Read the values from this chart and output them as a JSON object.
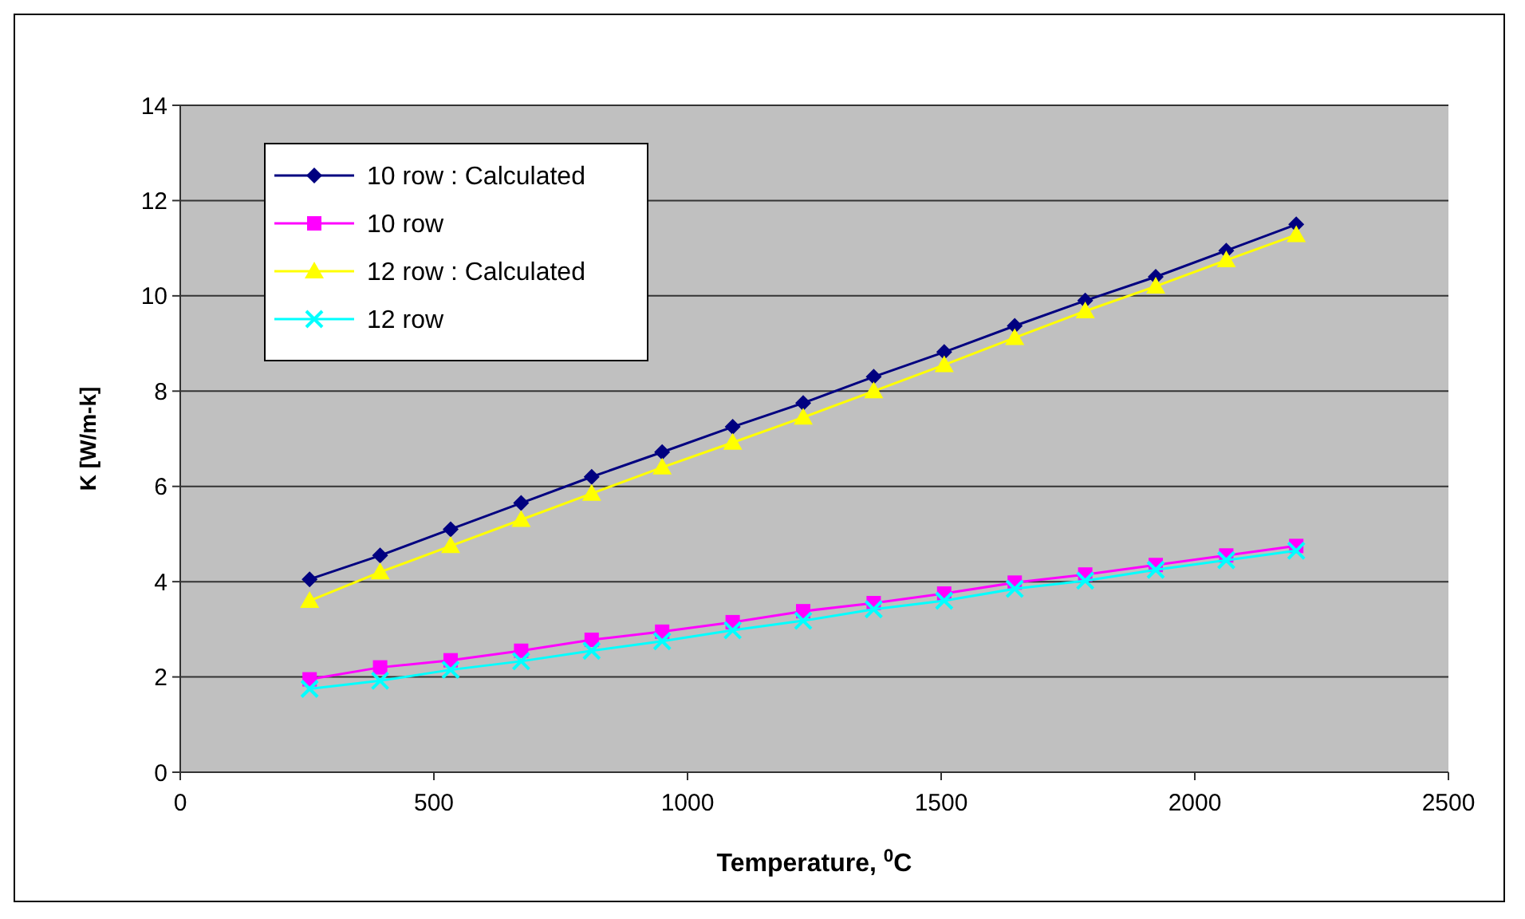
{
  "chart_data": {
    "type": "line",
    "xlabel": "Temperature, $^{0}$C",
    "ylabel": "K [W/m-k]",
    "x": [
      255,
      394,
      533,
      672,
      811,
      950,
      1089,
      1228,
      1367,
      1506,
      1645,
      1784,
      1923,
      2062,
      2200
    ],
    "series": [
      {
        "name": "10 row : Calculated",
        "color": "#000080",
        "marker": "diamond",
        "values": [
          4.05,
          4.55,
          5.1,
          5.65,
          6.2,
          6.72,
          7.25,
          7.75,
          8.3,
          8.82,
          9.37,
          9.9,
          10.4,
          10.95,
          11.5
        ]
      },
      {
        "name": "10 row",
        "color": "#ff00ff",
        "marker": "square",
        "values": [
          1.95,
          2.2,
          2.35,
          2.55,
          2.78,
          2.95,
          3.15,
          3.38,
          3.55,
          3.75,
          3.98,
          4.15,
          4.35,
          4.55,
          4.75
        ]
      },
      {
        "name": "12 row : Calculated",
        "color": "#ffff00",
        "marker": "triangle",
        "values": [
          3.6,
          4.2,
          4.75,
          5.3,
          5.85,
          6.4,
          6.92,
          7.45,
          8.0,
          8.55,
          9.12,
          9.68,
          10.2,
          10.75,
          11.28
        ]
      },
      {
        "name": "12 row",
        "color": "#00ffff",
        "marker": "cross",
        "values": [
          1.75,
          1.92,
          2.15,
          2.33,
          2.55,
          2.75,
          2.98,
          3.18,
          3.42,
          3.6,
          3.85,
          4.02,
          4.25,
          4.45,
          4.65
        ]
      }
    ],
    "xlim": [
      0,
      2500
    ],
    "xticks": [
      0,
      500,
      1000,
      1500,
      2000,
      2500
    ],
    "ylim": [
      0,
      14
    ],
    "yticks": [
      0,
      2,
      4,
      6,
      8,
      10,
      12,
      14
    ],
    "grid": "y",
    "legend": "top left"
  }
}
